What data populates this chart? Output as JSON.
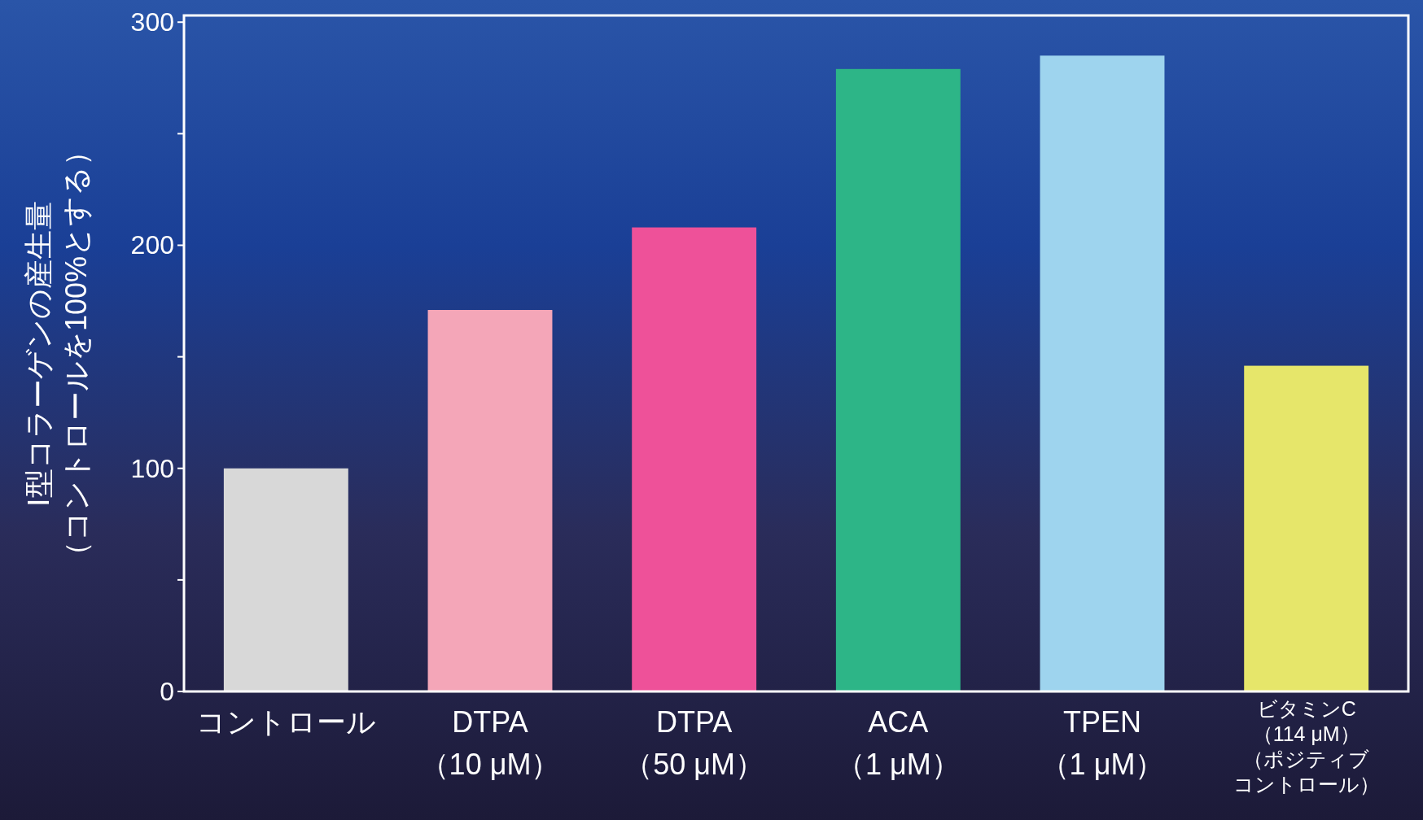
{
  "chart_data": {
    "type": "bar",
    "ylabel": "Ⅰ型コラーゲンの産生量（コントロールを100%とする）",
    "categories": [
      "コントロール",
      "DTPA（10 μM）",
      "DTPA（50 μM）",
      "ACA（1 μM）",
      "TPEN（1 μM）",
      "ビタミンC（114 μM）（ポジティブコントロール）"
    ],
    "values": [
      100,
      171,
      208,
      279,
      285,
      146
    ],
    "colors": [
      "#d8d8d8",
      "#f4a6b8",
      "#ee5199",
      "#2db587",
      "#9ed4ee",
      "#e6e66a"
    ],
    "ylim": [
      0,
      303
    ],
    "yticks": [
      0,
      {
        "value": 50,
        "label": null
      },
      100,
      {
        "value": 150,
        "label": null
      },
      200,
      {
        "value": 250,
        "label": null
      },
      300
    ]
  }
}
